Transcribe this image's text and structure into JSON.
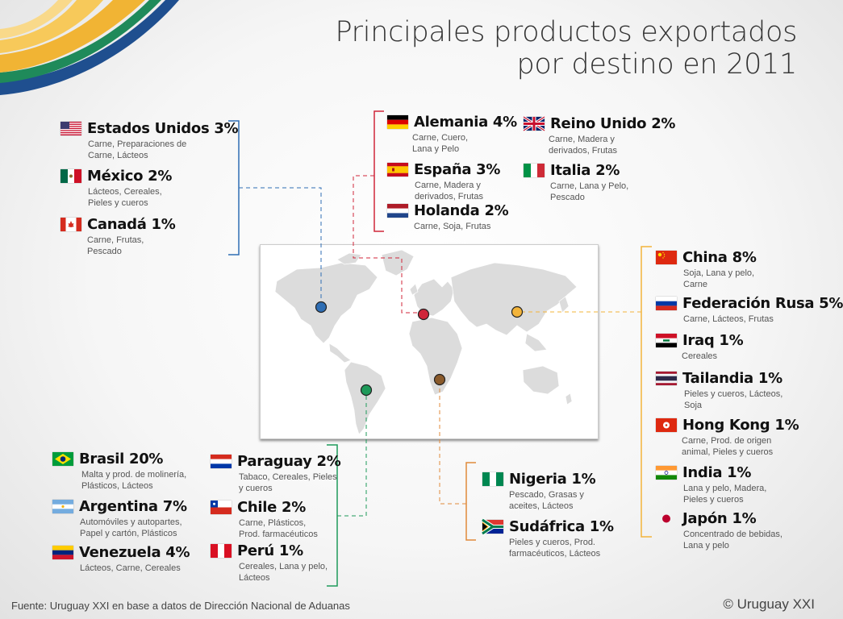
{
  "title_line1": "Principales productos exportados",
  "title_line2": "por destino en 2011",
  "footer": "Fuente:  Uruguay XXI en base a datos de Dirección Nacional de Aduanas",
  "copyright": "© Uruguay XXI",
  "colors": {
    "north_america": "#2f6eb4",
    "europe": "#d0263a",
    "asia": "#f3b43a",
    "south_america": "#1e9a5a",
    "africa": "#8a5a2b"
  },
  "north_america": [
    {
      "name": "Estados Unidos 3%",
      "products": [
        "Carne, Preparaciones de",
        "Carne, Lácteos"
      ],
      "flag": "us-flag"
    },
    {
      "name": "México 2%",
      "products": [
        "Lácteos, Cereales,",
        "Pieles y cueros"
      ],
      "flag": "mexico-flag"
    },
    {
      "name": "Canadá 1%",
      "products": [
        "Carne, Frutas,",
        "Pescado"
      ],
      "flag": "canada-flag"
    }
  ],
  "europe": [
    {
      "name": "Alemania 4%",
      "products": [
        "Carne, Cuero,",
        "Lana y Pelo"
      ],
      "flag": "germany-flag"
    },
    {
      "name": "España 3%",
      "products": [
        "Carne, Madera y",
        "derivados, Frutas"
      ],
      "flag": "spain-flag"
    },
    {
      "name": "Holanda 2%",
      "products": [
        "Carne, Soja, Frutas"
      ],
      "flag": "netherlands-flag"
    },
    {
      "name": "Reino Unido 2%",
      "products": [
        "Carne, Madera y",
        "derivados, Frutas"
      ],
      "flag": "uk-flag"
    },
    {
      "name": "Italia 2%",
      "products": [
        "Carne, Lana y Pelo,",
        "Pescado"
      ],
      "flag": "italy-flag"
    }
  ],
  "asia": [
    {
      "name": "China 8%",
      "products": [
        "Soja, Lana y pelo,",
        "Carne"
      ],
      "flag": "china-flag"
    },
    {
      "name": "Federación Rusa 5%",
      "products": [
        "Carne, Lácteos, Frutas"
      ],
      "flag": "russia-flag"
    },
    {
      "name": "Iraq 1%",
      "products": [
        "Cereales"
      ],
      "flag": "iraq-flag"
    },
    {
      "name": "Tailandia 1%",
      "products": [
        "Pieles y cueros, Lácteos,",
        "Soja"
      ],
      "flag": "thailand-flag"
    },
    {
      "name": "Hong Kong 1%",
      "products": [
        "Carne, Prod. de origen",
        "animal, Pieles y cueros"
      ],
      "flag": "hongkong-flag"
    },
    {
      "name": "India 1%",
      "products": [
        "Lana y pelo, Madera,",
        "Pieles y cueros"
      ],
      "flag": "india-flag"
    },
    {
      "name": "Japón 1%",
      "products": [
        "Concentrado de bebidas,",
        "Lana y pelo"
      ],
      "flag": "japan-flag"
    }
  ],
  "south_america": [
    {
      "name": "Brasil 20%",
      "products": [
        "Malta y prod. de molinería,",
        "Plásticos, Lácteos"
      ],
      "flag": "brazil-flag"
    },
    {
      "name": "Argentina 7%",
      "products": [
        "Automóviles y autopartes,",
        "Papel y cartón, Plásticos"
      ],
      "flag": "argentina-flag"
    },
    {
      "name": "Venezuela 4%",
      "products": [
        "Lácteos, Carne, Cereales"
      ],
      "flag": "venezuela-flag"
    },
    {
      "name": "Paraguay 2%",
      "products": [
        "Tabaco, Cereales, Pieles",
        "y cueros"
      ],
      "flag": "paraguay-flag"
    },
    {
      "name": "Chile 2%",
      "products": [
        "Carne, Plásticos,",
        "Prod. farmacéuticos"
      ],
      "flag": "chile-flag"
    },
    {
      "name": "Perú 1%",
      "products": [
        "Cereales, Lana y pelo,",
        "Lácteos"
      ],
      "flag": "peru-flag"
    }
  ],
  "africa": [
    {
      "name": "Nigeria 1%",
      "products": [
        "Pescado, Grasas y",
        "aceites, Lácteos"
      ],
      "flag": "nigeria-flag"
    },
    {
      "name": "Sudáfrica 1%",
      "products": [
        "Pieles y cueros, Prod.",
        "farmacéuticos, Lácteos"
      ],
      "flag": "southafrica-flag"
    }
  ]
}
